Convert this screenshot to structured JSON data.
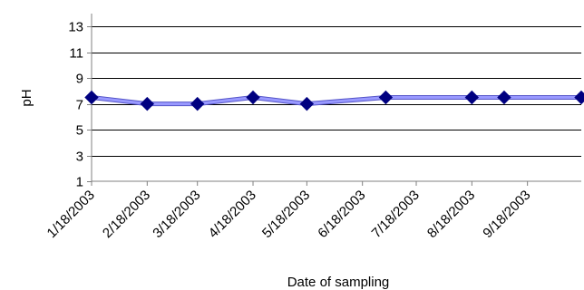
{
  "chart_data": {
    "type": "line",
    "title": "",
    "xlabel": "Date of sampling",
    "ylabel": "pH",
    "ylim": [
      1,
      14
    ],
    "yticks": [
      1,
      3,
      5,
      7,
      9,
      11,
      13
    ],
    "xlim": [
      "2003-01-18",
      "2003-10-18"
    ],
    "xtick_labels": [
      "1/18/2003",
      "2/18/2003",
      "3/18/2003",
      "4/18/2003",
      "5/18/2003",
      "6/18/2003",
      "7/18/2003",
      "8/18/2003",
      "9/18/2003"
    ],
    "xtick_dates": [
      "2003-01-18",
      "2003-02-18",
      "2003-03-18",
      "2003-04-18",
      "2003-05-18",
      "2003-06-18",
      "2003-07-18",
      "2003-08-18",
      "2003-09-18"
    ],
    "grid": "horizontal",
    "legend": "none",
    "series": [
      {
        "color": "#9999ff",
        "marker": "diamond",
        "marker_color": "#000080",
        "points": [
          {
            "x": "2003-01-18",
            "y": 7.5
          },
          {
            "x": "2003-02-18",
            "y": 7.0
          },
          {
            "x": "2003-03-18",
            "y": 7.0
          },
          {
            "x": "2003-04-18",
            "y": 7.5
          },
          {
            "x": "2003-05-18",
            "y": 7.0
          },
          {
            "x": "2003-07-01",
            "y": 7.5
          },
          {
            "x": "2003-08-18",
            "y": 7.5
          },
          {
            "x": "2003-09-05",
            "y": 7.5
          },
          {
            "x": "2003-10-18",
            "y": 7.5
          }
        ]
      }
    ]
  }
}
